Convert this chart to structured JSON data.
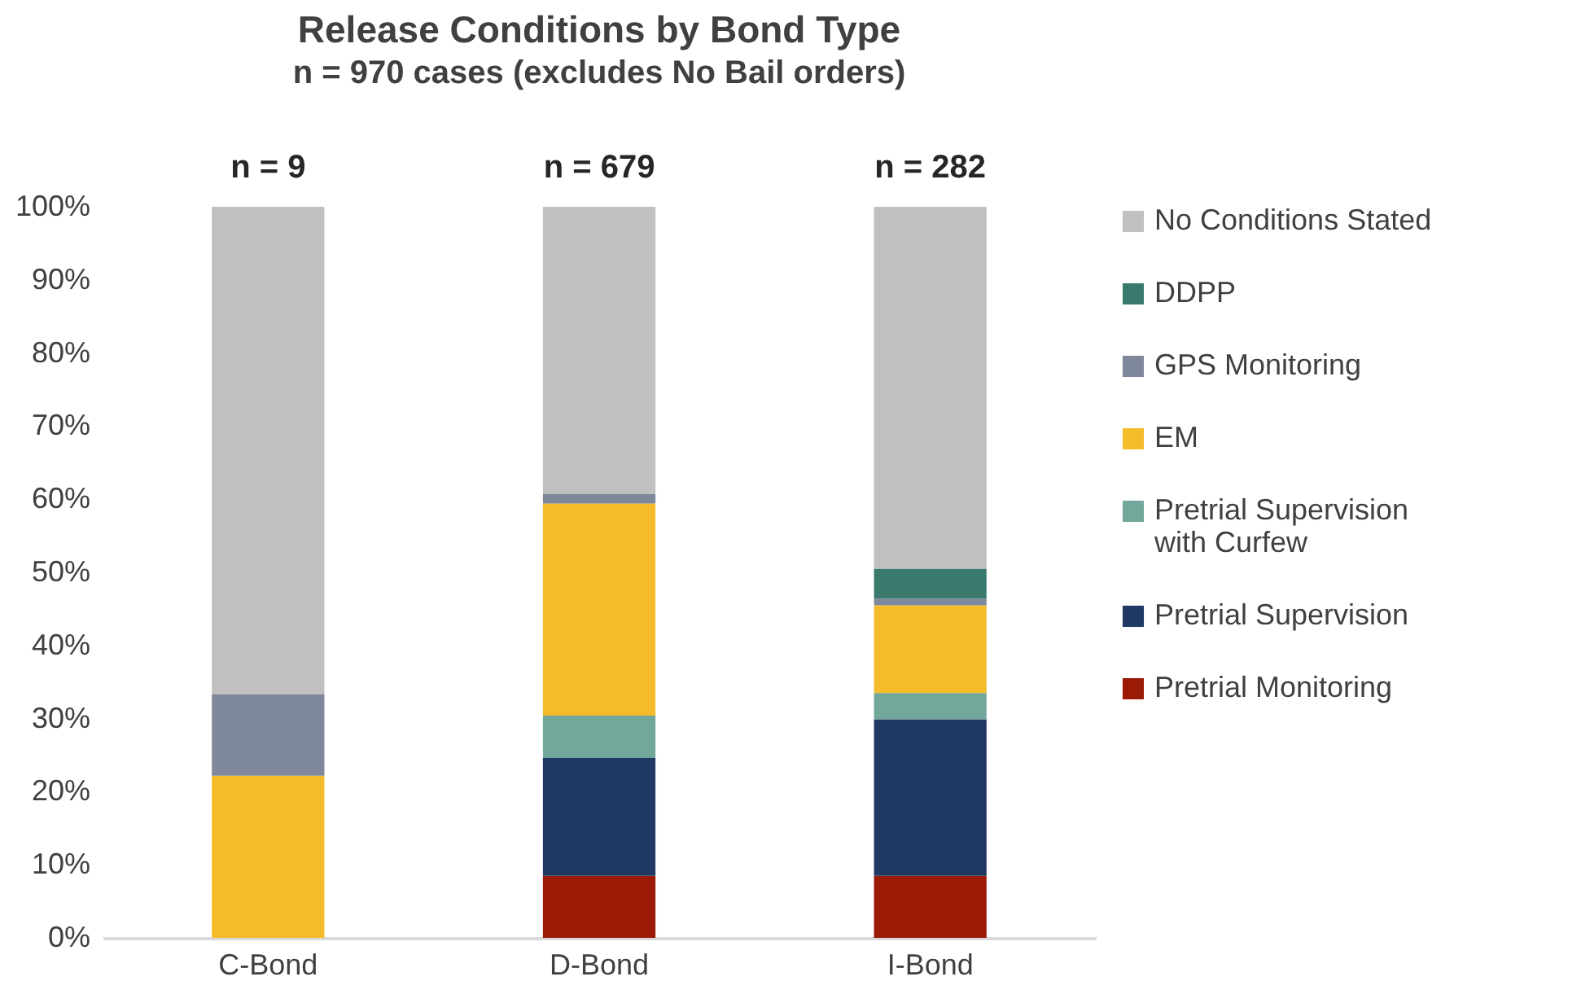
{
  "chart_data": {
    "type": "bar",
    "title": "Release Conditions by Bond Type",
    "subtitle": "n = 970 cases (excludes No Bail orders)",
    "categories": [
      "C-Bond",
      "D-Bond",
      "I-Bond"
    ],
    "stacked": true,
    "legend": "right",
    "grid": false,
    "ylim": [
      0,
      100
    ],
    "yticks": [
      {
        "value": 0,
        "label": "0%"
      },
      {
        "value": 10,
        "label": "10%"
      },
      {
        "value": 20,
        "label": "20%"
      },
      {
        "value": 30,
        "label": "30%"
      },
      {
        "value": 40,
        "label": "40%"
      },
      {
        "value": 50,
        "label": "50%"
      },
      {
        "value": 60,
        "label": "60%"
      },
      {
        "value": 70,
        "label": "70%"
      },
      {
        "value": 80,
        "label": "80%"
      },
      {
        "value": 90,
        "label": "90%"
      },
      {
        "value": 100,
        "label": "100%"
      }
    ],
    "series": [
      {
        "name": "Pretrial Monitoring",
        "color": "#9a1a06",
        "values": [
          0,
          8.5,
          8.5
        ]
      },
      {
        "name": "Pretrial Supervision",
        "color": "#1f3864",
        "values": [
          0,
          16.1,
          21.4
        ]
      },
      {
        "name": "Pretrial Supervision with Curfew",
        "color": "#72a79c",
        "values": [
          0,
          5.8,
          3.6
        ]
      },
      {
        "name": "EM",
        "color": "#f4bb2b",
        "values": [
          22.2,
          29.0,
          12.0
        ]
      },
      {
        "name": "GPS Monitoring",
        "color": "#7f889b",
        "values": [
          11.1,
          1.3,
          0.9
        ]
      },
      {
        "name": "DDPP",
        "color": "#3a7a6d",
        "values": [
          0,
          0,
          4.1
        ]
      },
      {
        "name": "No Conditions Stated",
        "color": "#c0c0c0",
        "values": [
          66.7,
          39.3,
          49.5
        ]
      }
    ],
    "annotations": [
      {
        "text": "n = 9",
        "x": "C-Bond",
        "y": 100
      },
      {
        "text": "n = 679",
        "x": "D-Bond",
        "y": 100
      },
      {
        "text": "n = 282",
        "x": "I-Bond",
        "y": 100
      }
    ]
  }
}
